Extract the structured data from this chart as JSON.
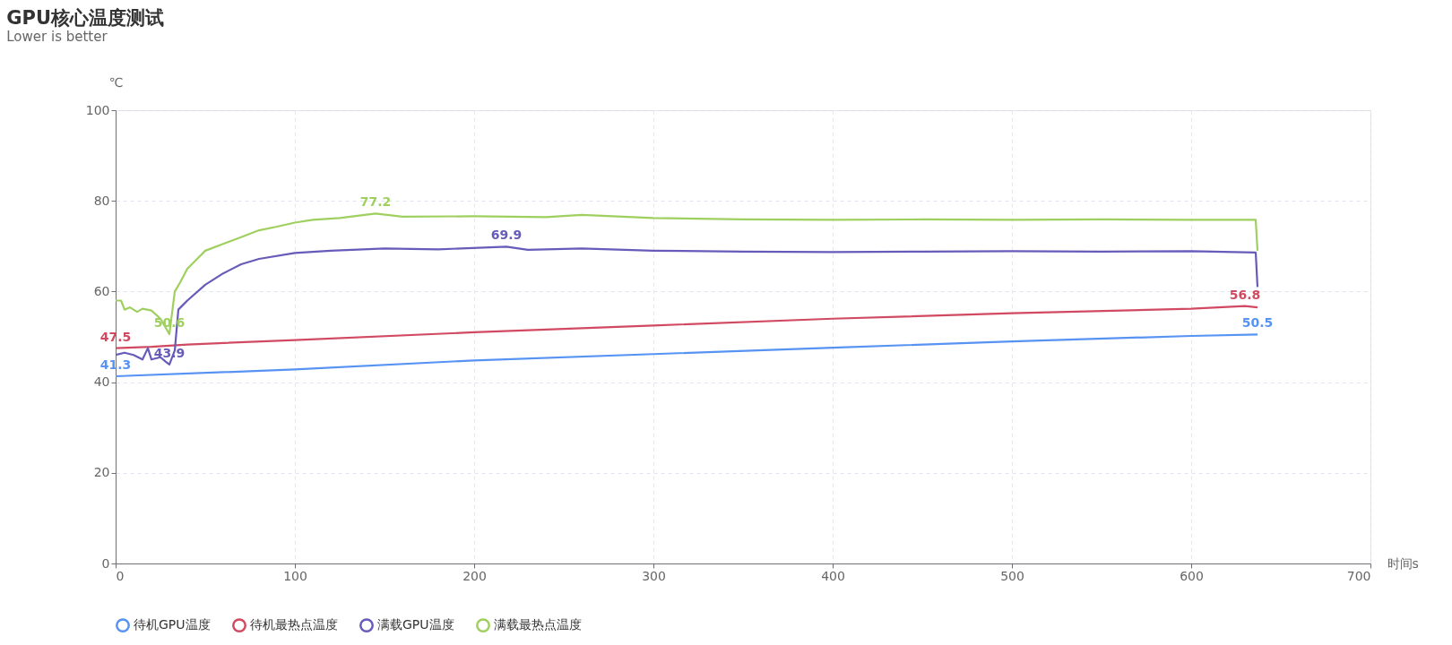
{
  "chart_data": {
    "type": "line",
    "title": "GPU核心温度测试",
    "subtitle": "Lower is better",
    "xlabel": "时间s",
    "ylabel": "℃",
    "xlim": [
      0,
      700
    ],
    "xticks": [
      0,
      100,
      200,
      300,
      400,
      500,
      600,
      700
    ],
    "ylim": [
      0,
      100
    ],
    "yticks": [
      0,
      20,
      40,
      60,
      80,
      100
    ],
    "grid": true,
    "legend": "bottom",
    "marker": "none",
    "line_style": "solid",
    "series": [
      {
        "name": "待机GPU温度",
        "color": "#5793f3",
        "x": [
          0,
          100,
          200,
          300,
          400,
          500,
          600,
          637
        ],
        "values": [
          41.3,
          42.8,
          44.8,
          46.2,
          47.6,
          49.0,
          50.2,
          50.5
        ]
      },
      {
        "name": "待机最热点温度",
        "color": "#d14a61",
        "x": [
          0,
          20,
          40,
          100,
          200,
          300,
          400,
          500,
          600,
          630,
          637
        ],
        "values": [
          47.5,
          47.8,
          48.3,
          49.3,
          51.0,
          52.5,
          54.0,
          55.2,
          56.2,
          56.8,
          56.5
        ]
      },
      {
        "name": "满载GPU温度",
        "color": "#675bba",
        "x": [
          0,
          5,
          10,
          15,
          18,
          20,
          25,
          28,
          30,
          33,
          35,
          40,
          50,
          60,
          70,
          80,
          100,
          120,
          150,
          180,
          218,
          230,
          260,
          300,
          350,
          400,
          450,
          500,
          550,
          600,
          636,
          637
        ],
        "values": [
          46,
          46.5,
          46,
          45,
          47.5,
          45,
          45.5,
          44.5,
          43.9,
          47,
          56,
          58,
          61.5,
          64,
          66,
          67.2,
          68.5,
          69,
          69.5,
          69.3,
          69.9,
          69.2,
          69.5,
          69,
          68.8,
          68.7,
          68.8,
          68.9,
          68.8,
          68.9,
          68.6,
          61
        ]
      },
      {
        "name": "满载最热点温度",
        "color": "#9fd05f",
        "x": [
          0,
          3,
          5,
          8,
          12,
          15,
          20,
          25,
          30,
          33,
          36,
          40,
          45,
          50,
          60,
          70,
          80,
          90,
          100,
          110,
          125,
          145,
          160,
          200,
          240,
          260,
          300,
          350,
          400,
          450,
          500,
          550,
          600,
          636,
          637
        ],
        "values": [
          58,
          58,
          56,
          56.5,
          55.5,
          56.2,
          55.8,
          54,
          50.6,
          60,
          62,
          65,
          67,
          69,
          70.5,
          72,
          73.5,
          74.3,
          75.2,
          75.8,
          76.2,
          77.2,
          76.5,
          76.6,
          76.4,
          76.9,
          76.2,
          75.9,
          75.8,
          75.9,
          75.8,
          75.9,
          75.8,
          75.8,
          69
        ]
      }
    ],
    "annotations": [
      {
        "text": "41.3",
        "x": 0,
        "y": 41.3
      },
      {
        "text": "50.5",
        "x": 637,
        "y": 50.5
      },
      {
        "text": "47.5",
        "x": 0,
        "y": 47.5
      },
      {
        "text": "56.8",
        "x": 630,
        "y": 56.8
      },
      {
        "text": "43.9",
        "x": 30,
        "y": 43.9
      },
      {
        "text": "69.9",
        "x": 218,
        "y": 69.9
      },
      {
        "text": "50.6",
        "x": 30,
        "y": 50.6
      },
      {
        "text": "77.2",
        "x": 145,
        "y": 77.2
      }
    ]
  }
}
